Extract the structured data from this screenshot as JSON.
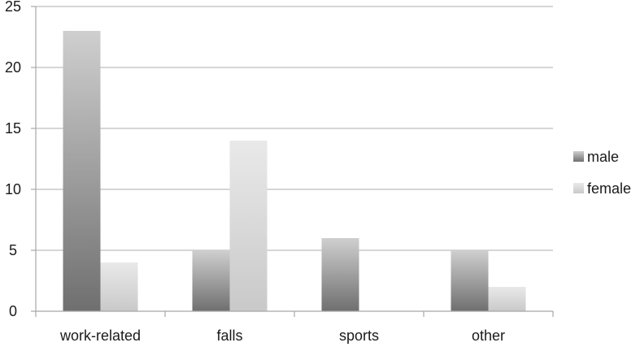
{
  "chart_data": {
    "type": "bar",
    "categories": [
      "work-related",
      "falls",
      "sports",
      "other"
    ],
    "series": [
      {
        "name": "male",
        "values": [
          23,
          5,
          6,
          5
        ],
        "color_dark": "#6f6f6f",
        "color_light": "#cfcfcf"
      },
      {
        "name": "female",
        "values": [
          4,
          14,
          0,
          2
        ],
        "color_dark": "#c9c9c9",
        "color_light": "#e9e9e9"
      }
    ],
    "yticks": [
      "0",
      "5",
      "10",
      "15",
      "20",
      "25"
    ],
    "ylim": [
      0,
      25
    ],
    "grid": true,
    "legend_position": "right",
    "title": "",
    "xlabel": "",
    "ylabel": ""
  }
}
